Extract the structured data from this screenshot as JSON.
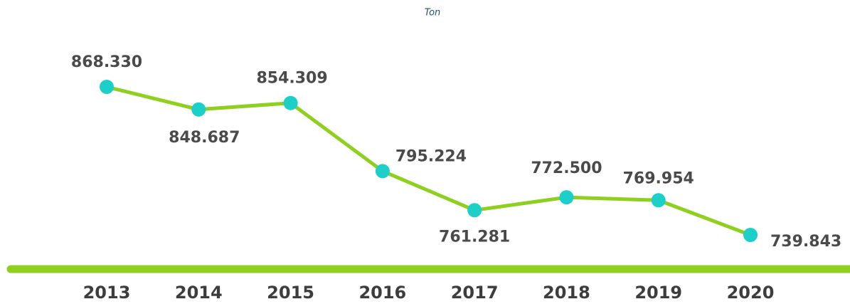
{
  "chart_data": {
    "type": "line",
    "title": "Ton",
    "categories": [
      "2013",
      "2014",
      "2015",
      "2016",
      "2017",
      "2018",
      "2019",
      "2020"
    ],
    "values": [
      868330,
      848687,
      854309,
      795224,
      761281,
      772500,
      769954,
      739843
    ],
    "value_labels": [
      "868.330",
      "848.687",
      "854.309",
      "795.224",
      "761.281",
      "772.500",
      "769.954",
      "739.843"
    ],
    "color": "#8fcf1e",
    "marker_color": "#1ccfc9"
  }
}
